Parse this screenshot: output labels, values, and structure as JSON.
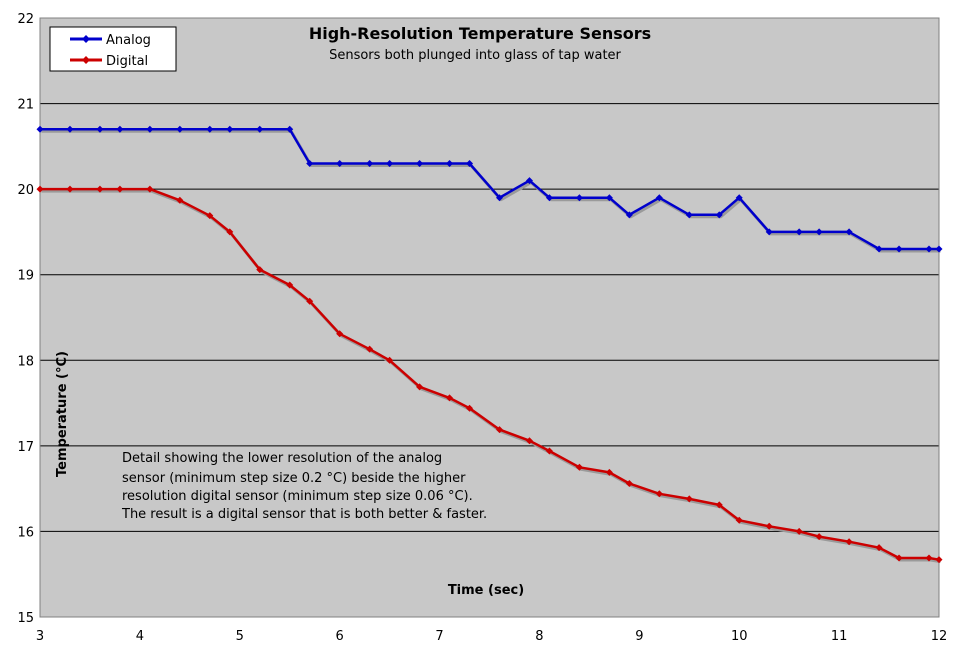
{
  "chart_data": {
    "type": "line",
    "title": "High-Resolution Temperature Sensors",
    "subtitle": "Sensors both plunged into glass of tap water",
    "xlabel": "Time (sec)",
    "ylabel": "Temperature (°C)",
    "xlim": [
      3,
      12
    ],
    "ylim": [
      15,
      22
    ],
    "x_ticks": [
      "3",
      "4",
      "5",
      "6",
      "7",
      "8",
      "9",
      "10",
      "11",
      "12"
    ],
    "y_ticks": [
      "15",
      "16",
      "17",
      "18",
      "19",
      "20",
      "21",
      "22"
    ],
    "grid": "horizontal",
    "legend_position": "top-left",
    "annotation": [
      "Detail showing the lower resolution of the analog",
      "sensor (minimum step size 0.2 °C) beside the higher",
      "resolution digital sensor (minimum step size 0.06 °C).",
      "The result is a digital sensor that is both better & faster."
    ],
    "series": [
      {
        "name": "Analog",
        "color": "#0000cc",
        "x": [
          3.0,
          3.3,
          3.6,
          3.8,
          4.1,
          4.4,
          4.7,
          4.9,
          5.2,
          5.5,
          5.7,
          6.0,
          6.3,
          6.5,
          6.8,
          7.1,
          7.3,
          7.6,
          7.9,
          8.1,
          8.4,
          8.7,
          8.9,
          9.2,
          9.5,
          9.8,
          10.0,
          10.3,
          10.6,
          10.8,
          11.1,
          11.4,
          11.6,
          11.9,
          12.0
        ],
        "values": [
          20.7,
          20.7,
          20.7,
          20.7,
          20.7,
          20.7,
          20.7,
          20.7,
          20.7,
          20.7,
          20.3,
          20.3,
          20.3,
          20.3,
          20.3,
          20.3,
          20.3,
          19.9,
          20.1,
          19.9,
          19.9,
          19.9,
          19.7,
          19.9,
          19.7,
          19.7,
          19.9,
          19.5,
          19.5,
          19.5,
          19.5,
          19.3,
          19.3,
          19.3,
          19.3
        ]
      },
      {
        "name": "Digital",
        "color": "#cc0000",
        "x": [
          3.0,
          3.3,
          3.6,
          3.8,
          4.1,
          4.4,
          4.7,
          4.9,
          5.2,
          5.5,
          5.7,
          6.0,
          6.3,
          6.5,
          6.8,
          7.1,
          7.3,
          7.6,
          7.9,
          8.1,
          8.4,
          8.7,
          8.9,
          9.2,
          9.5,
          9.8,
          10.0,
          10.3,
          10.6,
          10.8,
          11.1,
          11.4,
          11.6,
          11.9,
          12.0
        ],
        "values": [
          20.0,
          20.0,
          20.0,
          20.0,
          20.0,
          19.87,
          19.69,
          19.5,
          19.06,
          18.88,
          18.69,
          18.31,
          18.13,
          18.0,
          17.69,
          17.56,
          17.44,
          17.19,
          17.06,
          16.94,
          16.75,
          16.69,
          16.56,
          16.44,
          16.38,
          16.31,
          16.13,
          16.06,
          16.0,
          15.94,
          15.88,
          15.81,
          15.69,
          15.69,
          15.67
        ]
      }
    ]
  }
}
